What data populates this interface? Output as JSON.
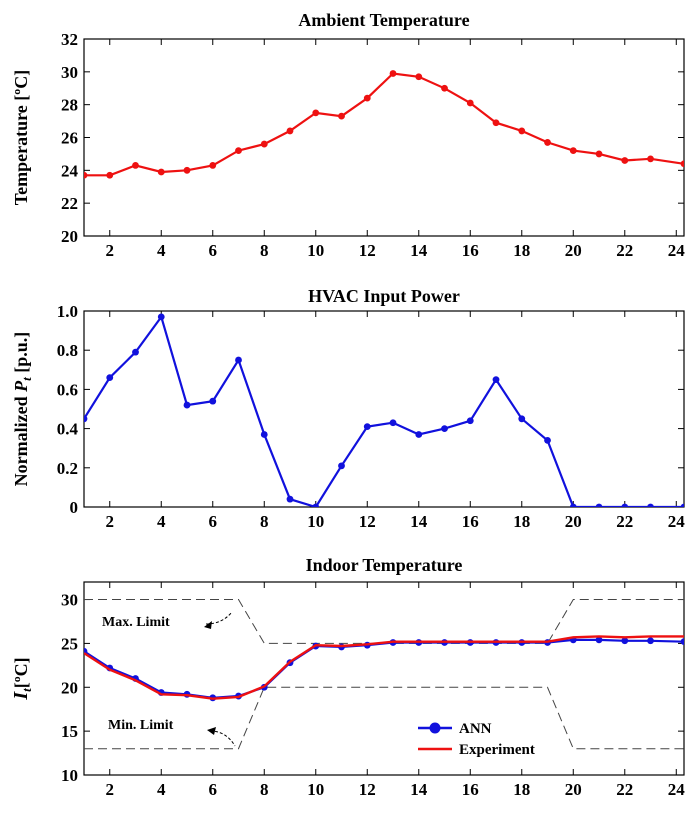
{
  "chart_data": [
    {
      "type": "line",
      "title": "Ambient Temperature",
      "ylabel": "Temperature [ºC]",
      "xlim": [
        1,
        24.3
      ],
      "ylim": [
        20,
        32
      ],
      "xticks": [
        2,
        4,
        6,
        8,
        10,
        12,
        14,
        16,
        18,
        20,
        22,
        24
      ],
      "yticks": [
        20,
        22,
        24,
        26,
        28,
        30,
        32
      ],
      "grid": false,
      "colors": {
        "line": "#ee1111"
      },
      "x": [
        1,
        2,
        3,
        4,
        5,
        6,
        7,
        8,
        9,
        10,
        11,
        12,
        13,
        14,
        15,
        16,
        17,
        18,
        19,
        20,
        21,
        22,
        23,
        24.3
      ],
      "values": [
        23.7,
        23.7,
        24.3,
        23.9,
        24.0,
        24.3,
        25.2,
        25.6,
        26.4,
        27.5,
        27.3,
        28.4,
        29.9,
        29.7,
        29.0,
        28.1,
        26.9,
        26.4,
        25.7,
        25.2,
        25.0,
        24.6,
        24.7,
        24.4
      ]
    },
    {
      "type": "line",
      "title": "HVAC Input Power",
      "ylabel_parts": [
        "Normalized ",
        "P",
        "t",
        " [p.u.]"
      ],
      "xlim": [
        1,
        24.3
      ],
      "ylim": [
        0,
        1.0
      ],
      "xticks": [
        2,
        4,
        6,
        8,
        10,
        12,
        14,
        16,
        18,
        20,
        22,
        24
      ],
      "yticks": [
        0,
        0.2,
        0.4,
        0.6,
        0.8,
        1.0
      ],
      "ytick_labels": [
        "0",
        "0.2",
        "0.4",
        "0.6",
        "0.8",
        "1.0"
      ],
      "grid": false,
      "colors": {
        "line": "#1111dd"
      },
      "x": [
        1,
        2,
        3,
        4,
        5,
        6,
        7,
        8,
        9,
        10,
        11,
        12,
        13,
        14,
        15,
        16,
        17,
        18,
        19,
        20,
        21,
        22,
        23,
        24.3
      ],
      "values": [
        0.45,
        0.66,
        0.79,
        0.97,
        0.52,
        0.54,
        0.75,
        0.37,
        0.04,
        0.0,
        0.21,
        0.41,
        0.43,
        0.37,
        0.4,
        0.44,
        0.65,
        0.45,
        0.34,
        0.0,
        0.0,
        0.0,
        0.0,
        0.0
      ]
    },
    {
      "type": "line",
      "title": "Indoor Temperature",
      "ylabel_parts": [
        "I",
        "t",
        "[ºC]"
      ],
      "xlim": [
        1,
        24.3
      ],
      "ylim": [
        10,
        32
      ],
      "xticks": [
        2,
        4,
        6,
        8,
        10,
        12,
        14,
        16,
        18,
        20,
        22,
        24
      ],
      "yticks": [
        10,
        15,
        20,
        25,
        30
      ],
      "grid": false,
      "legend": "bottom-right",
      "colors": {
        "ann": "#1111dd",
        "experiment": "#ee1111",
        "limit": "#444444"
      },
      "x": [
        1,
        2,
        3,
        4,
        5,
        6,
        7,
        8,
        9,
        10,
        11,
        12,
        13,
        14,
        15,
        16,
        17,
        18,
        19,
        20,
        21,
        22,
        23,
        24.3
      ],
      "series": [
        {
          "name": "ANN",
          "values": [
            24.1,
            22.2,
            21.0,
            19.4,
            19.2,
            18.8,
            19.0,
            20.0,
            22.8,
            24.7,
            24.6,
            24.8,
            25.1,
            25.1,
            25.1,
            25.1,
            25.1,
            25.1,
            25.1,
            25.4,
            25.4,
            25.3,
            25.3,
            25.2
          ]
        },
        {
          "name": "Experiment",
          "values": [
            23.9,
            22.0,
            20.8,
            19.2,
            19.1,
            18.7,
            18.9,
            20.1,
            22.9,
            24.8,
            24.7,
            24.9,
            25.2,
            25.2,
            25.2,
            25.2,
            25.2,
            25.2,
            25.2,
            25.7,
            25.8,
            25.7,
            25.8,
            25.8
          ]
        }
      ],
      "limits": {
        "max": {
          "label": "Max. Limit",
          "x": [
            1,
            7,
            8,
            19,
            20,
            24.3
          ],
          "values": [
            30,
            30,
            25,
            25,
            30,
            30
          ]
        },
        "min": {
          "label": "Min. Limit",
          "x": [
            1,
            7,
            8,
            19,
            20,
            24.3
          ],
          "values": [
            13,
            13,
            20,
            20,
            13,
            13
          ]
        }
      }
    }
  ]
}
